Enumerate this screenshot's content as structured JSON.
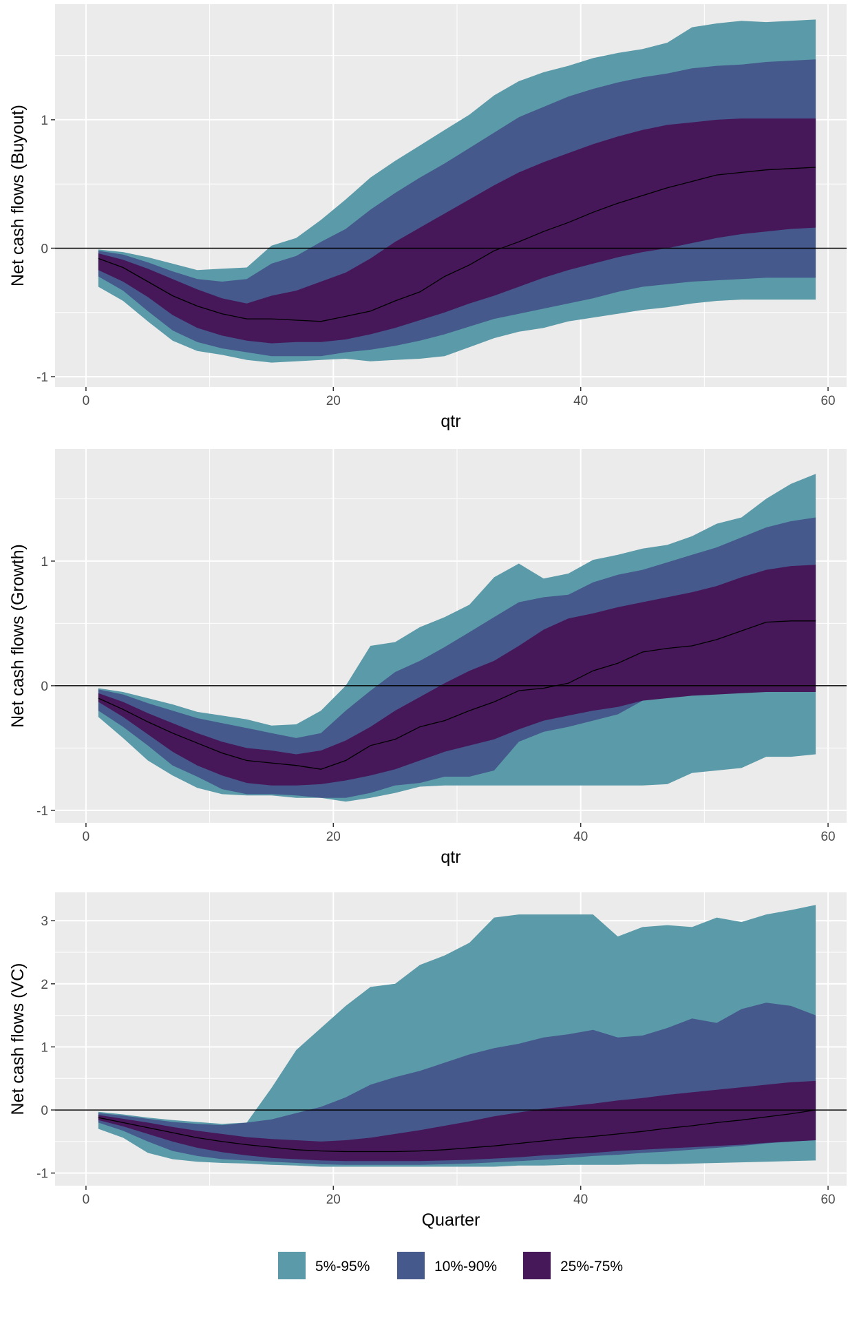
{
  "chart_data": [
    {
      "type": "area",
      "ylabel": "Net cash flows (Buyout)",
      "xlabel": "qtr",
      "xlim": [
        -2.5,
        61.5
      ],
      "ylim": [
        -1.08,
        1.9
      ],
      "xticks": [
        0,
        20,
        40,
        60
      ],
      "yticks": [
        -1,
        0,
        1
      ],
      "grid": true,
      "reference_line": 0,
      "x": [
        1,
        3,
        5,
        7,
        9,
        11,
        13,
        15,
        17,
        19,
        21,
        23,
        25,
        27,
        29,
        31,
        33,
        35,
        37,
        39,
        41,
        43,
        45,
        47,
        49,
        51,
        53,
        55,
        57,
        59
      ],
      "bands": [
        {
          "name": "5%-95%",
          "lower": [
            -0.3,
            -0.41,
            -0.57,
            -0.72,
            -0.8,
            -0.83,
            -0.87,
            -0.89,
            -0.88,
            -0.87,
            -0.86,
            -0.88,
            -0.87,
            -0.86,
            -0.84,
            -0.77,
            -0.7,
            -0.65,
            -0.62,
            -0.57,
            -0.54,
            -0.51,
            -0.48,
            -0.46,
            -0.43,
            -0.41,
            -0.4,
            -0.4,
            -0.4,
            -0.4
          ],
          "upper": [
            -0.01,
            -0.03,
            -0.07,
            -0.12,
            -0.17,
            -0.16,
            -0.15,
            0.02,
            0.08,
            0.22,
            0.38,
            0.55,
            0.68,
            0.8,
            0.92,
            1.04,
            1.19,
            1.3,
            1.37,
            1.42,
            1.48,
            1.52,
            1.55,
            1.6,
            1.72,
            1.75,
            1.77,
            1.76,
            1.77,
            1.78
          ]
        },
        {
          "name": "10%-90%",
          "lower": [
            -0.22,
            -0.33,
            -0.49,
            -0.64,
            -0.73,
            -0.78,
            -0.81,
            -0.84,
            -0.84,
            -0.84,
            -0.81,
            -0.79,
            -0.76,
            -0.72,
            -0.67,
            -0.61,
            -0.55,
            -0.51,
            -0.47,
            -0.43,
            -0.39,
            -0.34,
            -0.3,
            -0.28,
            -0.26,
            -0.25,
            -0.24,
            -0.23,
            -0.23,
            -0.23
          ],
          "upper": [
            -0.02,
            -0.05,
            -0.11,
            -0.18,
            -0.24,
            -0.26,
            -0.24,
            -0.12,
            -0.06,
            0.05,
            0.15,
            0.3,
            0.43,
            0.55,
            0.66,
            0.78,
            0.9,
            1.02,
            1.1,
            1.18,
            1.24,
            1.29,
            1.33,
            1.36,
            1.4,
            1.42,
            1.43,
            1.45,
            1.46,
            1.47
          ]
        },
        {
          "name": "25%-75%",
          "lower": [
            -0.17,
            -0.26,
            -0.38,
            -0.52,
            -0.62,
            -0.68,
            -0.72,
            -0.74,
            -0.73,
            -0.73,
            -0.71,
            -0.67,
            -0.62,
            -0.56,
            -0.5,
            -0.43,
            -0.37,
            -0.3,
            -0.23,
            -0.17,
            -0.12,
            -0.07,
            -0.03,
            0.0,
            0.04,
            0.08,
            0.11,
            0.13,
            0.15,
            0.16
          ],
          "upper": [
            -0.04,
            -0.09,
            -0.16,
            -0.24,
            -0.32,
            -0.39,
            -0.43,
            -0.37,
            -0.33,
            -0.26,
            -0.19,
            -0.08,
            0.05,
            0.16,
            0.27,
            0.38,
            0.49,
            0.59,
            0.67,
            0.74,
            0.81,
            0.87,
            0.92,
            0.96,
            0.98,
            1.0,
            1.01,
            1.01,
            1.01,
            1.01
          ]
        }
      ],
      "median": [
        -0.08,
        -0.15,
        -0.26,
        -0.37,
        -0.45,
        -0.51,
        -0.55,
        -0.55,
        -0.56,
        -0.57,
        -0.53,
        -0.49,
        -0.41,
        -0.34,
        -0.22,
        -0.13,
        -0.02,
        0.05,
        0.13,
        0.2,
        0.28,
        0.35,
        0.41,
        0.47,
        0.52,
        0.57,
        0.59,
        0.61,
        0.62,
        0.63
      ]
    },
    {
      "type": "area",
      "ylabel": "Net cash flows (Growth)",
      "xlabel": "qtr",
      "xlim": [
        -2.5,
        61.5
      ],
      "ylim": [
        -1.1,
        1.9
      ],
      "xticks": [
        0,
        20,
        40,
        60
      ],
      "yticks": [
        -1,
        0,
        1
      ],
      "grid": true,
      "reference_line": 0,
      "x": [
        1,
        3,
        5,
        7,
        9,
        11,
        13,
        15,
        17,
        19,
        21,
        23,
        25,
        27,
        29,
        31,
        33,
        35,
        37,
        39,
        41,
        43,
        45,
        47,
        49,
        51,
        53,
        55,
        57,
        59
      ],
      "bands": [
        {
          "name": "5%-95%",
          "lower": [
            -0.25,
            -0.42,
            -0.6,
            -0.72,
            -0.82,
            -0.87,
            -0.88,
            -0.88,
            -0.9,
            -0.9,
            -0.93,
            -0.9,
            -0.86,
            -0.81,
            -0.8,
            -0.8,
            -0.8,
            -0.8,
            -0.8,
            -0.8,
            -0.8,
            -0.8,
            -0.8,
            -0.79,
            -0.7,
            -0.68,
            -0.66,
            -0.57,
            -0.57,
            -0.55
          ],
          "upper": [
            -0.02,
            -0.05,
            -0.1,
            -0.15,
            -0.21,
            -0.24,
            -0.27,
            -0.32,
            -0.31,
            -0.2,
            0.0,
            0.32,
            0.35,
            0.47,
            0.55,
            0.65,
            0.87,
            0.98,
            0.86,
            0.9,
            1.01,
            1.05,
            1.1,
            1.13,
            1.2,
            1.3,
            1.35,
            1.5,
            1.62,
            1.7
          ]
        },
        {
          "name": "10%-90%",
          "lower": [
            -0.2,
            -0.33,
            -0.48,
            -0.64,
            -0.73,
            -0.83,
            -0.87,
            -0.87,
            -0.88,
            -0.9,
            -0.9,
            -0.86,
            -0.8,
            -0.78,
            -0.73,
            -0.73,
            -0.68,
            -0.45,
            -0.37,
            -0.33,
            -0.28,
            -0.23,
            -0.12,
            -0.05,
            -0.02,
            0.0,
            0.0,
            -0.02,
            -0.03,
            -0.04
          ],
          "upper": [
            -0.03,
            -0.07,
            -0.14,
            -0.2,
            -0.26,
            -0.3,
            -0.34,
            -0.38,
            -0.42,
            -0.38,
            -0.2,
            -0.04,
            0.11,
            0.2,
            0.31,
            0.43,
            0.55,
            0.67,
            0.71,
            0.73,
            0.83,
            0.89,
            0.93,
            0.99,
            1.05,
            1.11,
            1.19,
            1.27,
            1.32,
            1.35
          ]
        },
        {
          "name": "25%-75%",
          "lower": [
            -0.13,
            -0.25,
            -0.39,
            -0.53,
            -0.64,
            -0.72,
            -0.78,
            -0.8,
            -0.8,
            -0.79,
            -0.76,
            -0.72,
            -0.67,
            -0.6,
            -0.53,
            -0.48,
            -0.43,
            -0.35,
            -0.28,
            -0.24,
            -0.2,
            -0.17,
            -0.12,
            -0.1,
            -0.08,
            -0.07,
            -0.06,
            -0.05,
            -0.05,
            -0.05
          ],
          "upper": [
            -0.06,
            -0.13,
            -0.22,
            -0.3,
            -0.38,
            -0.45,
            -0.5,
            -0.52,
            -0.55,
            -0.52,
            -0.44,
            -0.33,
            -0.2,
            -0.09,
            0.02,
            0.12,
            0.2,
            0.32,
            0.45,
            0.54,
            0.58,
            0.63,
            0.67,
            0.71,
            0.75,
            0.8,
            0.87,
            0.93,
            0.96,
            0.97
          ]
        }
      ],
      "median": [
        -0.1,
        -0.19,
        -0.29,
        -0.38,
        -0.46,
        -0.54,
        -0.6,
        -0.62,
        -0.64,
        -0.67,
        -0.6,
        -0.48,
        -0.43,
        -0.33,
        -0.28,
        -0.2,
        -0.13,
        -0.04,
        -0.02,
        0.02,
        0.12,
        0.18,
        0.27,
        0.3,
        0.32,
        0.37,
        0.44,
        0.51,
        0.52,
        0.52
      ]
    },
    {
      "type": "area",
      "ylabel": "Net cash flows (VC)",
      "xlabel": "Quarter",
      "xlim": [
        -2.5,
        61.5
      ],
      "ylim": [
        -1.2,
        3.45
      ],
      "xticks": [
        0,
        20,
        40,
        60
      ],
      "yticks": [
        -1,
        0,
        1,
        2,
        3
      ],
      "grid": true,
      "reference_line": 0,
      "x": [
        1,
        3,
        5,
        7,
        9,
        11,
        13,
        15,
        17,
        19,
        21,
        23,
        25,
        27,
        29,
        31,
        33,
        35,
        37,
        39,
        41,
        43,
        45,
        47,
        49,
        51,
        53,
        55,
        57,
        59
      ],
      "bands": [
        {
          "name": "5%-95%",
          "lower": [
            -0.3,
            -0.44,
            -0.68,
            -0.78,
            -0.82,
            -0.84,
            -0.85,
            -0.87,
            -0.88,
            -0.9,
            -0.9,
            -0.9,
            -0.9,
            -0.9,
            -0.9,
            -0.9,
            -0.9,
            -0.88,
            -0.88,
            -0.87,
            -0.87,
            -0.87,
            -0.86,
            -0.86,
            -0.85,
            -0.84,
            -0.83,
            -0.82,
            -0.81,
            -0.8
          ],
          "upper": [
            -0.03,
            -0.07,
            -0.12,
            -0.16,
            -0.19,
            -0.22,
            -0.2,
            0.35,
            0.95,
            1.3,
            1.65,
            1.95,
            2.0,
            2.3,
            2.45,
            2.65,
            3.05,
            3.1,
            3.1,
            3.1,
            3.1,
            2.75,
            2.9,
            2.93,
            2.9,
            3.05,
            2.98,
            3.1,
            3.17,
            3.25
          ]
        },
        {
          "name": "10%-90%",
          "lower": [
            -0.2,
            -0.33,
            -0.5,
            -0.65,
            -0.73,
            -0.78,
            -0.8,
            -0.82,
            -0.84,
            -0.86,
            -0.87,
            -0.87,
            -0.87,
            -0.87,
            -0.86,
            -0.85,
            -0.83,
            -0.81,
            -0.79,
            -0.76,
            -0.73,
            -0.71,
            -0.68,
            -0.66,
            -0.63,
            -0.6,
            -0.57,
            -0.53,
            -0.5,
            -0.48
          ],
          "upper": [
            -0.05,
            -0.09,
            -0.14,
            -0.19,
            -0.22,
            -0.24,
            -0.2,
            -0.15,
            -0.05,
            0.05,
            0.2,
            0.4,
            0.52,
            0.62,
            0.75,
            0.88,
            0.98,
            1.05,
            1.15,
            1.2,
            1.27,
            1.15,
            1.18,
            1.3,
            1.45,
            1.38,
            1.6,
            1.7,
            1.65,
            1.5
          ]
        },
        {
          "name": "25%-75%",
          "lower": [
            -0.16,
            -0.26,
            -0.38,
            -0.5,
            -0.6,
            -0.67,
            -0.72,
            -0.76,
            -0.78,
            -0.8,
            -0.81,
            -0.81,
            -0.81,
            -0.81,
            -0.8,
            -0.79,
            -0.77,
            -0.75,
            -0.72,
            -0.7,
            -0.68,
            -0.65,
            -0.63,
            -0.61,
            -0.59,
            -0.57,
            -0.55,
            -0.52,
            -0.5,
            -0.48
          ],
          "upper": [
            -0.08,
            -0.14,
            -0.2,
            -0.27,
            -0.33,
            -0.38,
            -0.43,
            -0.46,
            -0.48,
            -0.5,
            -0.48,
            -0.44,
            -0.38,
            -0.32,
            -0.25,
            -0.18,
            -0.1,
            -0.04,
            0.02,
            0.06,
            0.1,
            0.15,
            0.19,
            0.24,
            0.28,
            0.32,
            0.36,
            0.4,
            0.44,
            0.46
          ]
        }
      ],
      "median": [
        -0.12,
        -0.2,
        -0.28,
        -0.36,
        -0.44,
        -0.5,
        -0.55,
        -0.59,
        -0.63,
        -0.65,
        -0.66,
        -0.66,
        -0.66,
        -0.65,
        -0.63,
        -0.6,
        -0.57,
        -0.53,
        -0.49,
        -0.45,
        -0.42,
        -0.38,
        -0.34,
        -0.29,
        -0.25,
        -0.2,
        -0.16,
        -0.11,
        -0.06,
        0.0
      ]
    }
  ],
  "legend": {
    "position": "bottom",
    "items": [
      {
        "label": "5%-95%",
        "color": "#2f7f92"
      },
      {
        "label": "10%-90%",
        "color": "#46468a"
      },
      {
        "label": "25%-75%",
        "color": "#45105e"
      }
    ]
  },
  "colors": {
    "band_outer": "#5b9aa8",
    "band_middle": "#45598c",
    "band_inner": "#461859",
    "median_line": "#000000",
    "panel_background": "#ebebeb",
    "grid_line": "#ffffff"
  }
}
